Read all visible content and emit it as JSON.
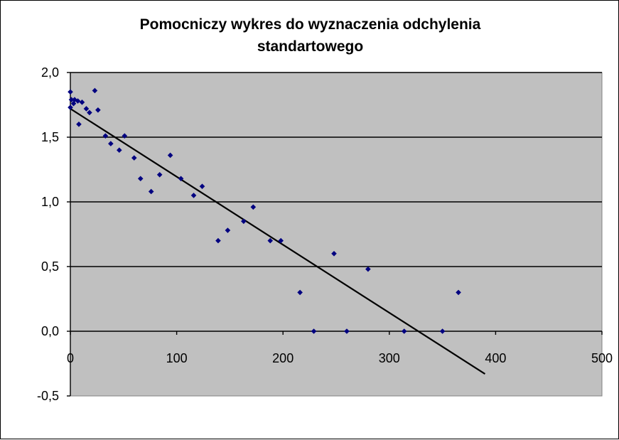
{
  "chart_data": {
    "type": "scatter",
    "title": "Pomocniczy wykres do wyznaczenia odchylenia\nstandartowego",
    "xlim": [
      0,
      500
    ],
    "ylim": [
      -0.5,
      2.0
    ],
    "x_ticks": [
      0,
      100,
      200,
      300,
      400,
      500
    ],
    "x_tick_labels": [
      "0",
      "100",
      "200",
      "300",
      "400",
      "500"
    ],
    "y_ticks": [
      2.0,
      1.5,
      1.0,
      0.5,
      0.0,
      -0.5
    ],
    "y_tick_labels": [
      "2,0",
      "1,5",
      "1,0",
      "0,5",
      "0,0",
      "-0,5"
    ],
    "grid": "horizontal",
    "plot_background": "#c0c0c0",
    "marker_color": "#000080",
    "trendline_color": "#000000",
    "points": [
      [
        0,
        1.85
      ],
      [
        0,
        1.73
      ],
      [
        1,
        1.79
      ],
      [
        3,
        1.76
      ],
      [
        4,
        1.79
      ],
      [
        7,
        1.78
      ],
      [
        8,
        1.6
      ],
      [
        11,
        1.77
      ],
      [
        15,
        1.72
      ],
      [
        18,
        1.69
      ],
      [
        23,
        1.86
      ],
      [
        26,
        1.71
      ],
      [
        33,
        1.51
      ],
      [
        38,
        1.45
      ],
      [
        46,
        1.4
      ],
      [
        51,
        1.51
      ],
      [
        60,
        1.34
      ],
      [
        66,
        1.18
      ],
      [
        76,
        1.08
      ],
      [
        84,
        1.21
      ],
      [
        94,
        1.36
      ],
      [
        104,
        1.18
      ],
      [
        116,
        1.05
      ],
      [
        124,
        1.12
      ],
      [
        139,
        0.7
      ],
      [
        148,
        0.78
      ],
      [
        163,
        0.85
      ],
      [
        172,
        0.96
      ],
      [
        188,
        0.7
      ],
      [
        198,
        0.7
      ],
      [
        216,
        0.3
      ],
      [
        229,
        0.0
      ],
      [
        248,
        0.6
      ],
      [
        260,
        0.0
      ],
      [
        280,
        0.48
      ],
      [
        314,
        0.0
      ],
      [
        350,
        0.0
      ],
      [
        365,
        0.3
      ]
    ],
    "trendline": {
      "x": [
        0,
        390
      ],
      "y": [
        1.72,
        -0.33
      ]
    }
  }
}
